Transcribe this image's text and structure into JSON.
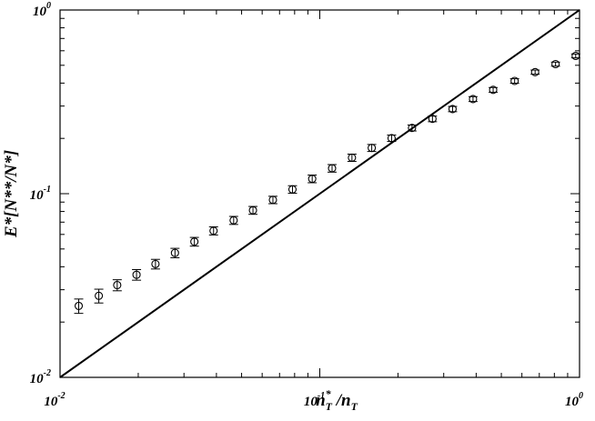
{
  "chart_data": {
    "type": "scatter",
    "xscale": "log",
    "yscale": "log",
    "xlim": [
      0.01,
      1
    ],
    "ylim": [
      0.01,
      1
    ],
    "xlabel": {
      "base": "n",
      "sup": "*",
      "sub": "T",
      "sep": " /",
      "base2": "n",
      "sub2": "T"
    },
    "ylabel": "E*[N**/N*]",
    "x_tick_labels": [
      {
        "value": 0.01,
        "base": "10",
        "exp": "-2"
      },
      {
        "value": 0.1,
        "base": "10",
        "exp": "-1"
      },
      {
        "value": 1,
        "base": "10",
        "exp": "0"
      }
    ],
    "y_tick_labels": [
      {
        "value": 0.01,
        "base": "10",
        "exp": "-2"
      },
      {
        "value": 0.1,
        "base": "10",
        "exp": "-1"
      },
      {
        "value": 1,
        "base": "10",
        "exp": "0"
      }
    ],
    "reference_line": {
      "type": "y=x",
      "from": 0.01,
      "to": 1
    },
    "points": [
      {
        "x": 0.0118,
        "y": 0.0245,
        "err": 0.0022
      },
      {
        "x": 0.0141,
        "y": 0.0278,
        "err": 0.0024
      },
      {
        "x": 0.0166,
        "y": 0.0318,
        "err": 0.0022
      },
      {
        "x": 0.0197,
        "y": 0.0362,
        "err": 0.0024
      },
      {
        "x": 0.0233,
        "y": 0.0414,
        "err": 0.0025
      },
      {
        "x": 0.0277,
        "y": 0.0476,
        "err": 0.0028
      },
      {
        "x": 0.0329,
        "y": 0.0548,
        "err": 0.003
      },
      {
        "x": 0.039,
        "y": 0.0628,
        "err": 0.0032
      },
      {
        "x": 0.0466,
        "y": 0.0716,
        "err": 0.0036
      },
      {
        "x": 0.0553,
        "y": 0.0812,
        "err": 0.004
      },
      {
        "x": 0.066,
        "y": 0.0925,
        "err": 0.0043
      },
      {
        "x": 0.0785,
        "y": 0.1055,
        "err": 0.005
      },
      {
        "x": 0.0935,
        "y": 0.1205,
        "err": 0.0058
      },
      {
        "x": 0.1115,
        "y": 0.1375,
        "err": 0.0065
      },
      {
        "x": 0.133,
        "y": 0.157,
        "err": 0.0072
      },
      {
        "x": 0.1585,
        "y": 0.1775,
        "err": 0.0078
      },
      {
        "x": 0.189,
        "y": 0.2005,
        "err": 0.008
      },
      {
        "x": 0.2265,
        "y": 0.228,
        "err": 0.0085
      },
      {
        "x": 0.2715,
        "y": 0.2555,
        "err": 0.009
      },
      {
        "x": 0.3245,
        "y": 0.289,
        "err": 0.0095
      },
      {
        "x": 0.389,
        "y": 0.3275,
        "err": 0.01
      },
      {
        "x": 0.465,
        "y": 0.3675,
        "err": 0.0108
      },
      {
        "x": 0.5625,
        "y": 0.411,
        "err": 0.0115
      },
      {
        "x": 0.6745,
        "y": 0.459,
        "err": 0.012
      },
      {
        "x": 0.8085,
        "y": 0.5075,
        "err": 0.0128
      },
      {
        "x": 0.9665,
        "y": 0.5625,
        "err": 0.0135
      }
    ],
    "grid": false,
    "legend": "none"
  }
}
